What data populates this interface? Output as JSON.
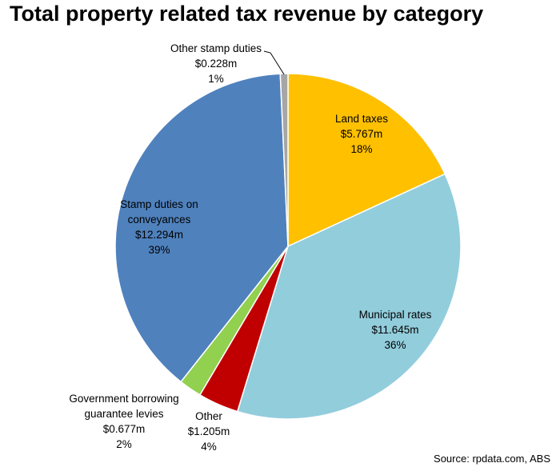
{
  "chart_data": {
    "type": "pie",
    "title": "Total property related tax revenue by category",
    "currency_unit": "$m",
    "slices": [
      {
        "category": "Land taxes",
        "label_lines": [
          "Land taxes"
        ],
        "value": 5.767,
        "value_text": "$5.767m",
        "percent_text": "18%",
        "color": "#FFC000"
      },
      {
        "category": "Municipal rates",
        "label_lines": [
          "Municipal rates"
        ],
        "value": 11.645,
        "value_text": "$11.645m",
        "percent_text": "36%",
        "color": "#92CDDC"
      },
      {
        "category": "Other",
        "label_lines": [
          "Other"
        ],
        "value": 1.205,
        "value_text": "$1.205m",
        "percent_text": "4%",
        "color": "#C00000"
      },
      {
        "category": "Government borrowing guarantee levies",
        "label_lines": [
          "Government borrowing",
          "guarantee levies"
        ],
        "value": 0.677,
        "value_text": "$0.677m",
        "percent_text": "2%",
        "color": "#92D050"
      },
      {
        "category": "Stamp duties on conveyances",
        "label_lines": [
          "Stamp duties on",
          "conveyances"
        ],
        "value": 12.294,
        "value_text": "$12.294m",
        "percent_text": "39%",
        "color": "#4F81BD"
      },
      {
        "category": "Other stamp duties",
        "label_lines": [
          "Other stamp duties"
        ],
        "value": 0.228,
        "value_text": "$0.228m",
        "percent_text": "1%",
        "color": "#A6A6A6"
      }
    ],
    "source": "Source: rpdata.com, ABS"
  }
}
